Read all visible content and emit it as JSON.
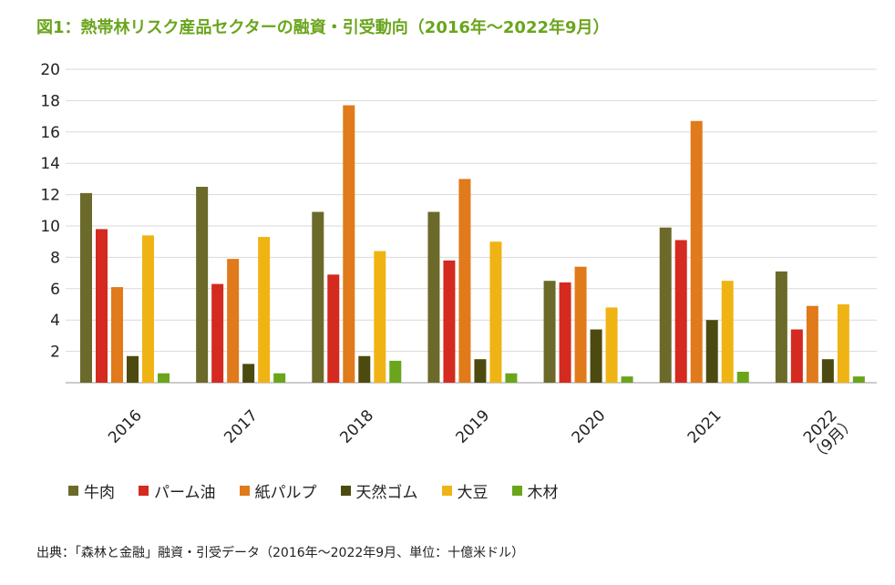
{
  "title": "図1：熱帯林リスク産品セクターの融資・引受動向（2016年〜2022年9月）",
  "source": "出典：「森林と金融」融資・引受データ（2016年〜2022年9月、単位：十億米ドル）",
  "colors": {
    "title": "#6aa51c",
    "grid": "#d9d9d9",
    "axis": "#999999"
  },
  "chart_data": {
    "type": "bar",
    "title": "熱帯林リスク産品セクターの融資・引受動向（2016年〜2022年9月）",
    "xlabel": "",
    "ylabel": "",
    "unit": "十億米ドル",
    "ylim": [
      0,
      20
    ],
    "yticks": [
      "2",
      "4",
      "6",
      "8",
      "10",
      "12",
      "14",
      "16",
      "18",
      "20"
    ],
    "grid": true,
    "legend_position": "bottom",
    "categories": [
      "2016",
      "2017",
      "2018",
      "2019",
      "2020",
      "2021",
      "2022"
    ],
    "category_sublabels": [
      "",
      "",
      "",
      "",
      "",
      "",
      "（9月）"
    ],
    "series": [
      {
        "name": "牛肉",
        "color": "#6b6a2a",
        "values": [
          12.1,
          12.5,
          10.9,
          10.9,
          6.5,
          9.9,
          7.1
        ]
      },
      {
        "name": "パーム油",
        "color": "#d42a1f",
        "values": [
          9.8,
          6.3,
          6.9,
          7.8,
          6.4,
          9.1,
          3.4
        ]
      },
      {
        "name": "紙パルプ",
        "color": "#e07a1a",
        "values": [
          6.1,
          7.9,
          17.7,
          13.0,
          7.4,
          16.7,
          4.9
        ]
      },
      {
        "name": "天然ゴム",
        "color": "#4d4a10",
        "values": [
          1.7,
          1.2,
          1.7,
          1.5,
          3.4,
          4.0,
          1.5
        ]
      },
      {
        "name": "大豆",
        "color": "#efb414",
        "values": [
          9.4,
          9.3,
          8.4,
          9.0,
          4.8,
          6.5,
          5.0
        ]
      },
      {
        "name": "木材",
        "color": "#6aa51c",
        "values": [
          0.6,
          0.6,
          1.4,
          0.6,
          0.4,
          0.7,
          0.4
        ]
      }
    ]
  }
}
